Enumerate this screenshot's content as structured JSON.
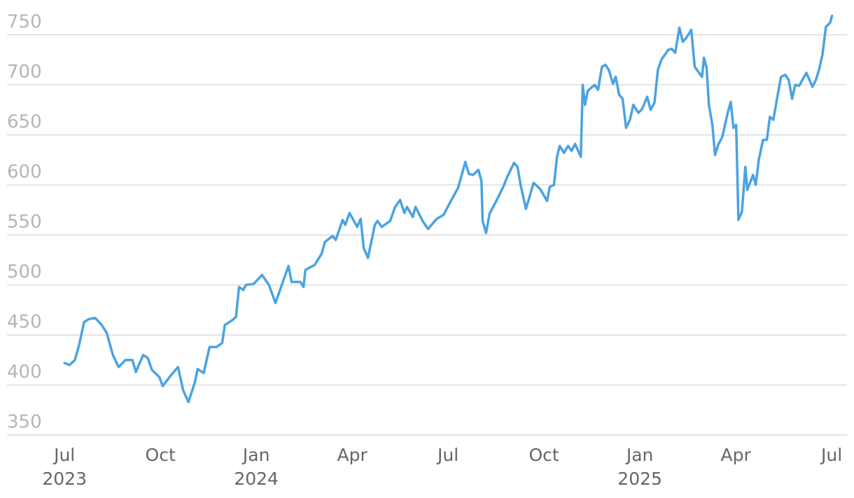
{
  "chart_data": {
    "type": "line",
    "x": [
      2023.5,
      2023.513,
      2023.527,
      2023.538,
      2023.551,
      2023.564,
      2023.58,
      2023.597,
      2023.61,
      2023.626,
      2023.641,
      2023.659,
      2023.677,
      2023.686,
      2023.705,
      2023.717,
      2023.728,
      2023.747,
      2023.756,
      2023.778,
      2023.796,
      2023.809,
      2023.823,
      2023.84,
      2023.847,
      2023.863,
      2023.878,
      2023.896,
      2023.911,
      2023.918,
      2023.938,
      2023.947,
      2023.955,
      2023.966,
      2023.973,
      2023.993,
      2024.015,
      2024.033,
      2024.05,
      2024.07,
      2024.084,
      2024.092,
      2024.115,
      2024.123,
      2024.128,
      2024.152,
      2024.17,
      2024.179,
      2024.199,
      2024.207,
      2024.225,
      2024.232,
      2024.243,
      2024.263,
      2024.272,
      2024.28,
      2024.291,
      2024.309,
      2024.316,
      2024.327,
      2024.349,
      2024.362,
      2024.375,
      2024.386,
      2024.393,
      2024.408,
      2024.415,
      2024.435,
      2024.448,
      2024.47,
      2024.488,
      2024.506,
      2024.526,
      2024.545,
      2024.554,
      2024.565,
      2024.579,
      2024.587,
      2024.59,
      2024.599,
      2024.608,
      2024.627,
      2024.645,
      2024.654,
      2024.672,
      2024.681,
      2024.689,
      2024.696,
      2024.703,
      2024.723,
      2024.74,
      2024.758,
      2024.765,
      2024.776,
      2024.784,
      2024.791,
      2024.802,
      2024.813,
      2024.822,
      2024.831,
      2024.846,
      2024.851,
      2024.857,
      2024.864,
      2024.882,
      2024.891,
      2024.901,
      2024.91,
      2024.919,
      2024.93,
      2024.937,
      2024.946,
      2024.955,
      2024.964,
      2024.974,
      2024.983,
      2024.996,
      2025.006,
      2025.019,
      2025.028,
      2025.038,
      2025.047,
      2025.056,
      2025.074,
      2025.083,
      2025.092,
      2025.103,
      2025.112,
      2025.123,
      2025.134,
      2025.143,
      2025.162,
      2025.167,
      2025.174,
      2025.18,
      2025.189,
      2025.196,
      2025.204,
      2025.215,
      2025.229,
      2025.237,
      2025.244,
      2025.251,
      2025.257,
      2025.266,
      2025.275,
      2025.28,
      2025.295,
      2025.302,
      2025.31,
      2025.321,
      2025.331,
      2025.339,
      2025.348,
      2025.357,
      2025.368,
      2025.379,
      2025.388,
      2025.397,
      2025.405,
      2025.415,
      2025.434,
      2025.45,
      2025.459,
      2025.467,
      2025.476,
      2025.485,
      2025.496,
      2025.501
    ],
    "series": [
      {
        "color": "#4aa3e2",
        "values": [
          422,
          420,
          425,
          440,
          463,
          466,
          467,
          460,
          452,
          430,
          418,
          425,
          425,
          413,
          430,
          427,
          415,
          408,
          399,
          410,
          418,
          395,
          383,
          403,
          416,
          412,
          438,
          438,
          442,
          460,
          465,
          468,
          498,
          495,
          500,
          501,
          510,
          500,
          482,
          504,
          519,
          503,
          503,
          498,
          515,
          520,
          531,
          543,
          549,
          545,
          565,
          560,
          572,
          558,
          566,
          537,
          527,
          560,
          564,
          558,
          564,
          578,
          585,
          572,
          578,
          568,
          578,
          563,
          556,
          566,
          570,
          583,
          597,
          623,
          611,
          610,
          615,
          604,
          564,
          552,
          571,
          585,
          599,
          608,
          622,
          618,
          600,
          588,
          576,
          602,
          596,
          584,
          598,
          600,
          628,
          639,
          632,
          639,
          634,
          641,
          628,
          700,
          680,
          694,
          700,
          695,
          718,
          720,
          715,
          701,
          708,
          690,
          686,
          657,
          665,
          680,
          672,
          676,
          688,
          675,
          682,
          715,
          725,
          735,
          736,
          732,
          757,
          743,
          748,
          755,
          718,
          708,
          727,
          717,
          680,
          660,
          630,
          640,
          648,
          672,
          683,
          657,
          660,
          565,
          573,
          618,
          595,
          610,
          600,
          625,
          645,
          645,
          668,
          665,
          685,
          708,
          710,
          705,
          686,
          700,
          699,
          712,
          698,
          705,
          715,
          730,
          758,
          762,
          769
        ]
      }
    ],
    "xlim": [
      2023.35,
      2025.54
    ],
    "xticks": [
      {
        "value": 2023.5,
        "label": "Jul 2023"
      },
      {
        "value": 2023.75,
        "label": "Oct"
      },
      {
        "value": 2024.0,
        "label": "Jan 2024"
      },
      {
        "value": 2024.25,
        "label": "Apr"
      },
      {
        "value": 2024.5,
        "label": "Jul"
      },
      {
        "value": 2024.75,
        "label": "Oct"
      },
      {
        "value": 2025.0,
        "label": "Jan 2025"
      },
      {
        "value": 2025.25,
        "label": "Apr"
      },
      {
        "value": 2025.5,
        "label": "Jul"
      }
    ],
    "ylim": [
      350,
      775
    ],
    "yticks": [
      350,
      400,
      450,
      500,
      550,
      600,
      650,
      700,
      750
    ],
    "grid": true
  }
}
